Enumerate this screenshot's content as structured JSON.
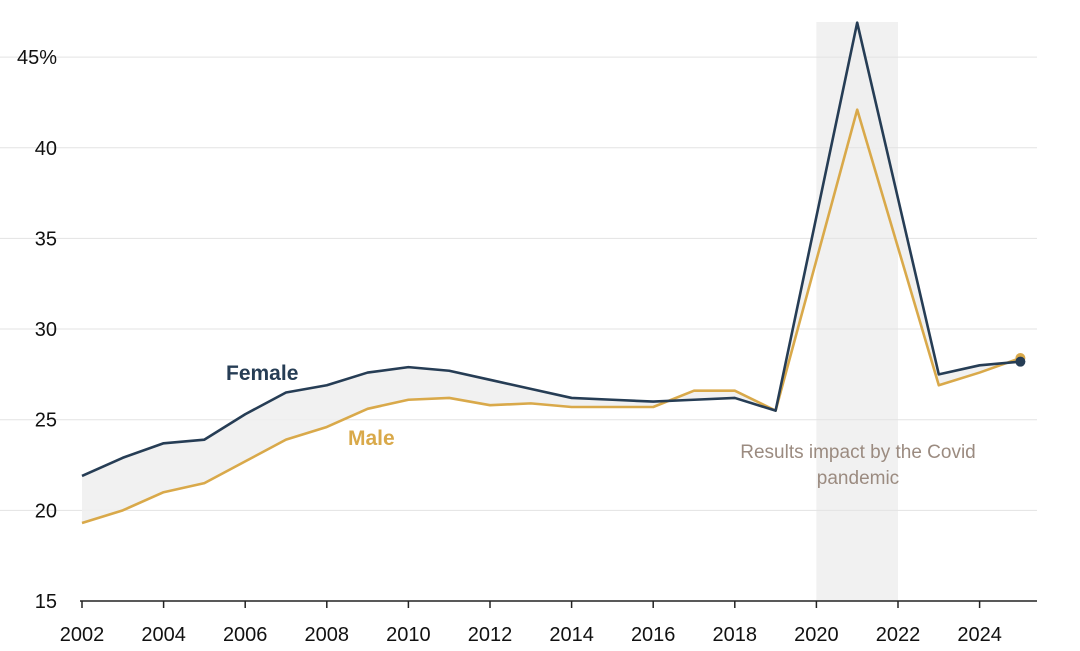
{
  "chart_data": {
    "type": "line",
    "x": [
      2002,
      2003,
      2004,
      2005,
      2006,
      2007,
      2008,
      2009,
      2010,
      2011,
      2012,
      2013,
      2014,
      2015,
      2016,
      2017,
      2018,
      2019,
      2020,
      2021,
      2022,
      2023,
      2024,
      2025
    ],
    "series": [
      {
        "name": "Female",
        "color": "#263d55",
        "values": [
          21.9,
          22.9,
          23.7,
          23.9,
          25.3,
          26.5,
          26.9,
          27.6,
          27.9,
          27.7,
          27.2,
          26.7,
          26.2,
          26.1,
          26.0,
          26.1,
          26.2,
          25.5,
          null,
          46.9,
          null,
          27.5,
          28.0,
          28.2
        ]
      },
      {
        "name": "Male",
        "color": "#d9a94a",
        "values": [
          19.3,
          20.0,
          21.0,
          21.5,
          22.7,
          23.9,
          24.6,
          25.6,
          26.1,
          26.2,
          25.8,
          25.9,
          25.7,
          25.7,
          25.7,
          26.6,
          26.6,
          25.5,
          null,
          42.1,
          null,
          26.9,
          27.6,
          28.4
        ]
      }
    ],
    "x_ticks": [
      2002,
      2004,
      2006,
      2008,
      2010,
      2012,
      2014,
      2016,
      2018,
      2020,
      2022,
      2024
    ],
    "y_ticks": [
      {
        "value": 15,
        "label": "15"
      },
      {
        "value": 20,
        "label": "20"
      },
      {
        "value": 25,
        "label": "25"
      },
      {
        "value": 30,
        "label": "30"
      },
      {
        "value": 35,
        "label": "35"
      },
      {
        "value": 40,
        "label": "40"
      },
      {
        "value": 45,
        "label": "45%"
      }
    ],
    "xlim": [
      2002,
      2025.5
    ],
    "ylim": [
      15,
      47
    ],
    "grid": true,
    "gap_fill_color": "#eeeeee",
    "shaded_region": {
      "x_start": 2020,
      "x_end": 2022,
      "color": "#f1f1f1"
    },
    "annotation": {
      "lines": [
        "Results impact by the Covid",
        "pandemic"
      ],
      "color": "#9b8b80"
    },
    "title": "",
    "xlabel": "",
    "ylabel": ""
  }
}
